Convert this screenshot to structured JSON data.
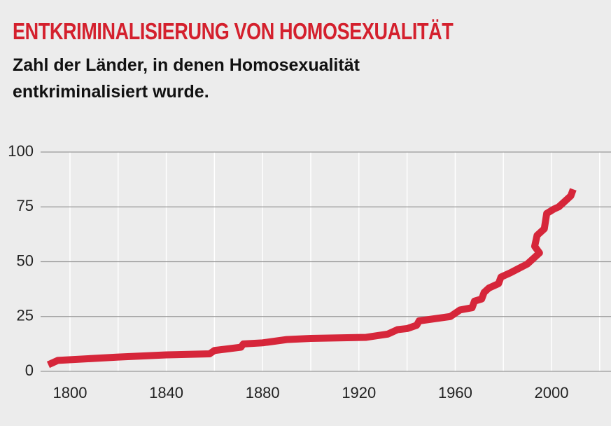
{
  "chart_data": {
    "type": "line",
    "title": "ENTKRIMINALISIERUNG VON HOMOSEXUALITÄT",
    "subtitle": "Zahl der Länder, in denen Homosexualität entkriminalisiert wurde.",
    "x": [
      1791,
      1795,
      1820,
      1840,
      1858,
      1860,
      1871,
      1872,
      1880,
      1890,
      1900,
      1923,
      1932,
      1936,
      1940,
      1944,
      1945,
      1958,
      1962,
      1967,
      1968,
      1971,
      1972,
      1974,
      1978,
      1979,
      1983,
      1990,
      1995,
      1993,
      1994,
      1997,
      1998,
      2001,
      2003,
      2005,
      2008,
      2009
    ],
    "series": [
      {
        "name": "Länder",
        "color": "#d6263a",
        "values": [
          3,
          5,
          6.5,
          7.5,
          8,
          9.5,
          11,
          12.5,
          13,
          14.5,
          15,
          15.5,
          17,
          19,
          19.5,
          21,
          23,
          25,
          28,
          29,
          32,
          33,
          36,
          38,
          40,
          43,
          45,
          49,
          54,
          57,
          62,
          65,
          72,
          74,
          75,
          77,
          80,
          83
        ]
      }
    ],
    "xlim": [
      1787.8,
      2024.7
    ],
    "ylim": [
      0,
      100
    ],
    "xticks": [
      1800,
      1840,
      1880,
      1920,
      1960,
      2000
    ],
    "xgrid": [
      1800,
      1820,
      1840,
      1860,
      1880,
      1900,
      1920,
      1940,
      1960,
      1980,
      2000,
      2020
    ],
    "yticks": [
      0,
      25,
      50,
      75,
      100
    ],
    "grid": true
  }
}
